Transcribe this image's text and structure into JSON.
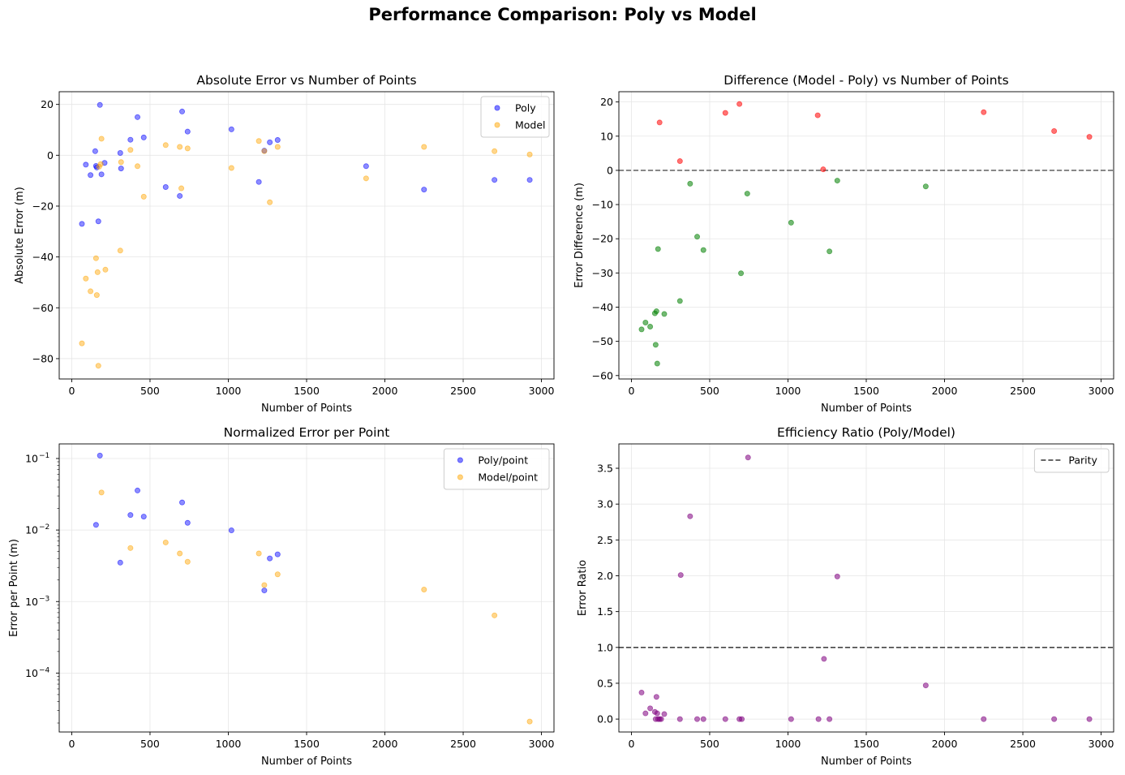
{
  "figure": {
    "suptitle": "Performance Comparison: Poly vs Model"
  },
  "colors": {
    "poly": "#0000ff",
    "model": "#ffa500",
    "positive_diff": "#ff0000",
    "negative_diff": "#008000",
    "ratio": "#800080",
    "reference_line": "#333333",
    "grid": "#e6e6e6"
  },
  "chart_data": [
    {
      "id": "abs",
      "type": "scatter",
      "title": "Absolute Error vs Number of Points",
      "xlabel": "Number of Points",
      "ylabel": "Absolute Error (m)",
      "xlim": [
        -80,
        3080
      ],
      "ylim": [
        -88,
        25
      ],
      "yscale": "linear",
      "xticks": [
        0,
        500,
        1000,
        1500,
        2000,
        2500,
        3000
      ],
      "yticks": [
        20,
        0,
        -20,
        -40,
        -60,
        -80
      ],
      "ytick_labels": [
        "20",
        "0",
        "−20",
        "−40",
        "−60",
        "−80"
      ],
      "grid": true,
      "legend": "top-right",
      "series": [
        {
          "name": "Poly",
          "color_key": "poly",
          "points": [
            [
              65,
              -27
            ],
            [
              90,
              -3.7
            ],
            [
              120,
              -7.8
            ],
            [
              150,
              1.6
            ],
            [
              155,
              -4.2
            ],
            [
              160,
              -4.8
            ],
            [
              170,
              -26
            ],
            [
              180,
              19.8
            ],
            [
              190,
              -7.5
            ],
            [
              210,
              -3
            ],
            [
              310,
              0.9
            ],
            [
              315,
              -5.2
            ],
            [
              375,
              6.1
            ],
            [
              420,
              15
            ],
            [
              460,
              7
            ],
            [
              600,
              -12.5
            ],
            [
              690,
              -16
            ],
            [
              705,
              17.2
            ],
            [
              740,
              9.3
            ],
            [
              1020,
              10.2
            ],
            [
              1195,
              -10.5
            ],
            [
              1230,
              1.8
            ],
            [
              1265,
              5.1
            ],
            [
              1315,
              6
            ],
            [
              1880,
              -4.3
            ],
            [
              2250,
              -13.5
            ],
            [
              2700,
              -9.7
            ],
            [
              2925,
              -9.7
            ]
          ]
        },
        {
          "name": "Model",
          "color_key": "model",
          "points": [
            [
              65,
              -74
            ],
            [
              90,
              -48.5
            ],
            [
              120,
              -53.5
            ],
            [
              155,
              -40.5
            ],
            [
              160,
              -55
            ],
            [
              165,
              -46
            ],
            [
              170,
              -82.8
            ],
            [
              175,
              -4.5
            ],
            [
              185,
              -3.5
            ],
            [
              190,
              6.5
            ],
            [
              215,
              -45
            ],
            [
              310,
              -37.5
            ],
            [
              315,
              -2.7
            ],
            [
              375,
              2.1
            ],
            [
              420,
              -4.3
            ],
            [
              460,
              -16.3
            ],
            [
              600,
              4
            ],
            [
              690,
              3.3
            ],
            [
              700,
              -13
            ],
            [
              740,
              2.7
            ],
            [
              1020,
              -5
            ],
            [
              1195,
              5.6
            ],
            [
              1230,
              1.6
            ],
            [
              1265,
              -18.5
            ],
            [
              1315,
              3.3
            ],
            [
              1880,
              -9.1
            ],
            [
              2250,
              3.3
            ],
            [
              2700,
              1.6
            ],
            [
              2925,
              0.3
            ]
          ]
        }
      ]
    },
    {
      "id": "diff",
      "type": "scatter",
      "title": "Difference (Model - Poly) vs Number of Points",
      "xlabel": "Number of Points",
      "ylabel": "Error Difference (m)",
      "xlim": [
        -80,
        3080
      ],
      "ylim": [
        -61,
        23
      ],
      "yscale": "linear",
      "xticks": [
        0,
        500,
        1000,
        1500,
        2000,
        2500,
        3000
      ],
      "yticks": [
        20,
        10,
        0,
        -10,
        -20,
        -30,
        -40,
        -50,
        -60
      ],
      "ytick_labels": [
        "20",
        "10",
        "0",
        "−10",
        "−20",
        "−30",
        "−40",
        "−50",
        "−60"
      ],
      "grid": true,
      "hline": {
        "y": 0,
        "style": "dashed",
        "color_key": "reference_line"
      },
      "series": [
        {
          "name": "",
          "color_key": "positive_diff",
          "points": [
            [
              180,
              14
            ],
            [
              310,
              2.7
            ],
            [
              600,
              16.8
            ],
            [
              690,
              19.4
            ],
            [
              1190,
              16.1
            ],
            [
              1225,
              0.3
            ],
            [
              2250,
              17
            ],
            [
              2700,
              11.5
            ],
            [
              2925,
              9.8
            ]
          ]
        },
        {
          "name": "",
          "color_key": "negative_diff",
          "points": [
            [
              65,
              -46.5
            ],
            [
              90,
              -44.5
            ],
            [
              120,
              -45.7
            ],
            [
              150,
              -41.8
            ],
            [
              155,
              -51
            ],
            [
              160,
              -41.2
            ],
            [
              165,
              -56.5
            ],
            [
              170,
              -23
            ],
            [
              210,
              -42
            ],
            [
              310,
              -38.2
            ],
            [
              375,
              -3.9
            ],
            [
              420,
              -19.4
            ],
            [
              460,
              -23.3
            ],
            [
              700,
              -30.1
            ],
            [
              740,
              -6.8
            ],
            [
              1020,
              -15.3
            ],
            [
              1265,
              -23.7
            ],
            [
              1315,
              -3
            ],
            [
              1880,
              -4.7
            ]
          ]
        }
      ]
    },
    {
      "id": "norm",
      "type": "scatter",
      "title": "Normalized Error per Point",
      "xlabel": "Number of Points",
      "ylabel": "Error per Point (m)",
      "xlim": [
        -80,
        3080
      ],
      "ylim": [
        1.5e-05,
        0.16
      ],
      "yscale": "log",
      "xticks": [
        0,
        500,
        1000,
        1500,
        2000,
        2500,
        3000
      ],
      "yticks": [
        0.1,
        0.01,
        0.001,
        0.0001
      ],
      "ytick_labels": [
        "10",
        "10",
        "10",
        "10"
      ],
      "ytick_exponents": [
        "−1",
        "−2",
        "−3",
        "−4"
      ],
      "grid": true,
      "legend": "top-right",
      "series": [
        {
          "name": "Poly/point",
          "color_key": "poly",
          "points": [
            [
              155,
              0.0118
            ],
            [
              180,
              0.11
            ],
            [
              310,
              0.0035
            ],
            [
              375,
              0.0162
            ],
            [
              420,
              0.0357
            ],
            [
              460,
              0.0154
            ],
            [
              705,
              0.0243
            ],
            [
              740,
              0.0126
            ],
            [
              1020,
              0.0099
            ],
            [
              1230,
              0.00143
            ],
            [
              1265,
              0.00401
            ],
            [
              1315,
              0.00457
            ]
          ]
        },
        {
          "name": "Model/point",
          "color_key": "model",
          "points": [
            [
              190,
              0.0335
            ],
            [
              375,
              0.0056
            ],
            [
              600,
              0.0067
            ],
            [
              690,
              0.0047
            ],
            [
              740,
              0.0036
            ],
            [
              1195,
              0.0047
            ],
            [
              1230,
              0.0017
            ],
            [
              1315,
              0.0024
            ],
            [
              2250,
              0.00147
            ],
            [
              2700,
              0.00064
            ],
            [
              2925,
              2.1e-05
            ]
          ]
        }
      ]
    },
    {
      "id": "ratio",
      "type": "scatter",
      "title": "Efficiency Ratio (Poly/Model)",
      "xlabel": "Number of Points",
      "ylabel": "Error Ratio",
      "xlim": [
        -80,
        3080
      ],
      "ylim": [
        -0.18,
        3.84
      ],
      "yscale": "linear",
      "xticks": [
        0,
        500,
        1000,
        1500,
        2000,
        2500,
        3000
      ],
      "yticks": [
        0,
        0.5,
        1.0,
        1.5,
        2.0,
        2.5,
        3.0,
        3.5
      ],
      "ytick_labels": [
        "0.0",
        "0.5",
        "1.0",
        "1.5",
        "2.0",
        "2.5",
        "3.0",
        "3.5"
      ],
      "grid": true,
      "legend": "top-right",
      "hline": {
        "y": 1,
        "style": "dashed",
        "color_key": "reference_line",
        "name": "Parity"
      },
      "series": [
        {
          "name": "",
          "color_key": "ratio",
          "points": [
            [
              65,
              0.37
            ],
            [
              90,
              0.08
            ],
            [
              120,
              0.15
            ],
            [
              150,
              0.1
            ],
            [
              155,
              0
            ],
            [
              160,
              0.31
            ],
            [
              165,
              0.08
            ],
            [
              170,
              0
            ],
            [
              180,
              0
            ],
            [
              190,
              0
            ],
            [
              210,
              0.07
            ],
            [
              310,
              0
            ],
            [
              315,
              2.01
            ],
            [
              375,
              2.83
            ],
            [
              420,
              0
            ],
            [
              460,
              0
            ],
            [
              600,
              0
            ],
            [
              690,
              0
            ],
            [
              705,
              0
            ],
            [
              745,
              3.65
            ],
            [
              1020,
              0
            ],
            [
              1195,
              0
            ],
            [
              1230,
              0.84
            ],
            [
              1265,
              0
            ],
            [
              1315,
              1.99
            ],
            [
              1880,
              0.47
            ],
            [
              2250,
              0
            ],
            [
              2700,
              0
            ],
            [
              2925,
              0
            ]
          ]
        }
      ]
    }
  ]
}
